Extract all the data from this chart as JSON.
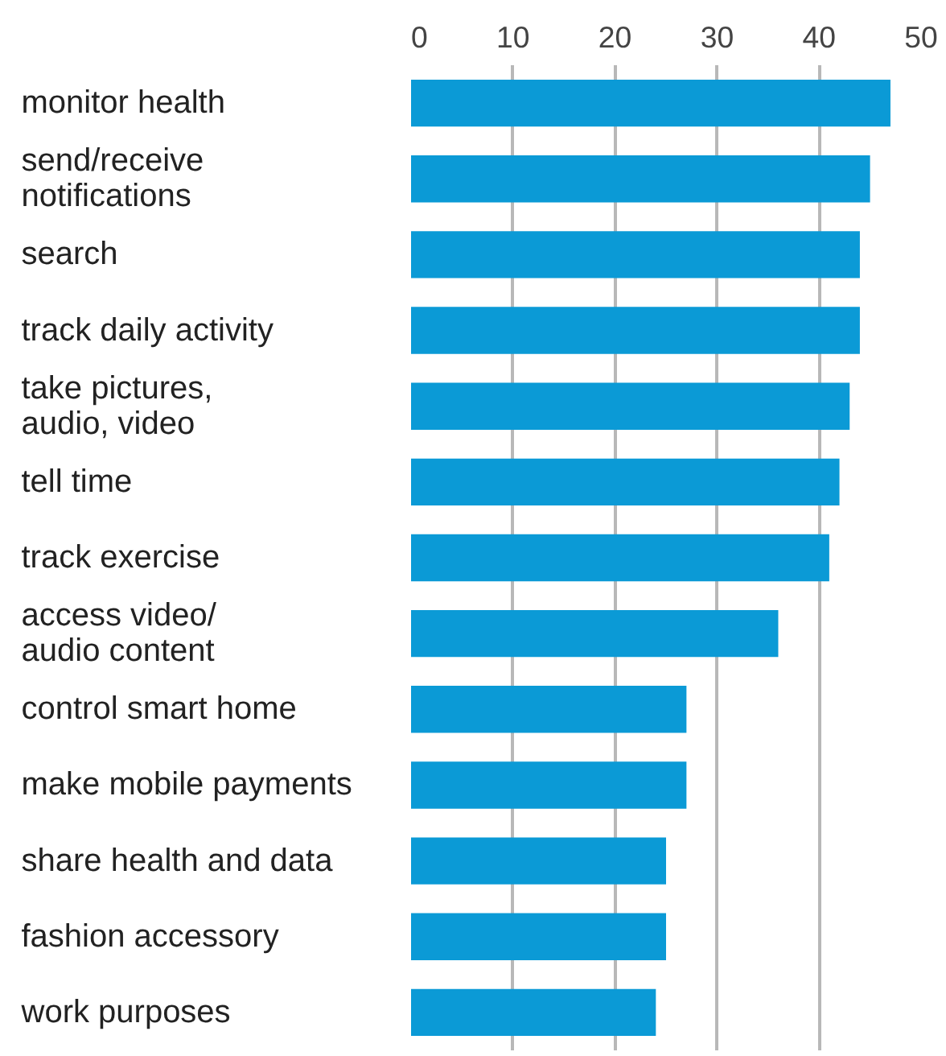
{
  "chart_data": {
    "type": "bar",
    "orientation": "horizontal",
    "categories": [
      "monitor health",
      "send/receive\nnotifications",
      "search",
      "track daily activity",
      "take pictures,\naudio, video",
      "tell time",
      "track exercise",
      "access video/\naudio content",
      "control smart home",
      "make mobile payments",
      "share health and data",
      "fashion accessory",
      "work purposes"
    ],
    "values": [
      47,
      45,
      44,
      44,
      43,
      42,
      41,
      36,
      27,
      27,
      25,
      25,
      24
    ],
    "color": "#0b9ad6",
    "xlim": [
      0,
      50
    ],
    "xticks": [
      0,
      10,
      20,
      30,
      40,
      50
    ],
    "grid": "x"
  }
}
